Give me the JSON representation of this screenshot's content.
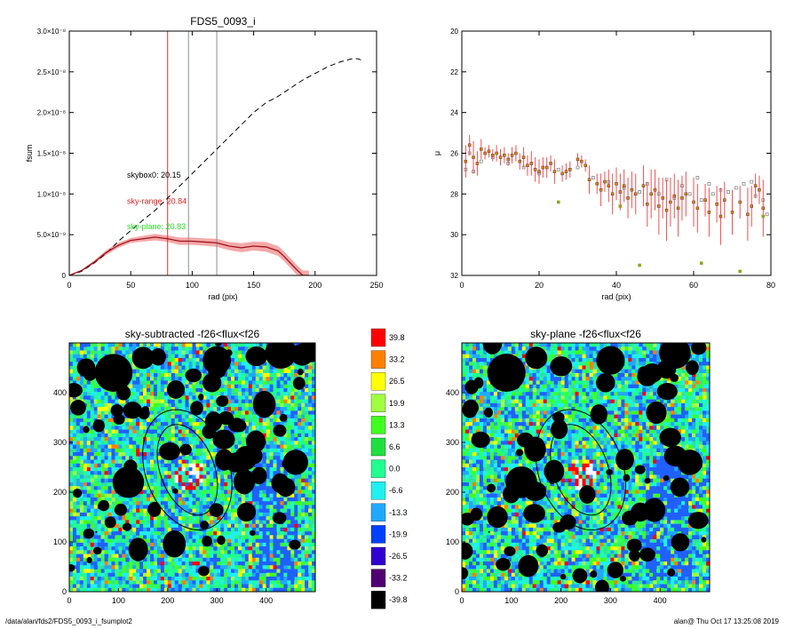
{
  "footer": {
    "path": "/data/alan/fds2/FDS5_0093_i_fsumplot2",
    "stamp": "alan@  Thu Oct 17 13:25:08 2019"
  },
  "colors": {
    "curve_main": "#a0141e",
    "error_band": "#f08c8c",
    "sky_range": "#e02020",
    "sky_plane": "#22dd22",
    "vline_red": "#e03030",
    "vline_gray": "#909090",
    "points_orange": "#ff7700",
    "points_green": "#33cc33",
    "points_gray": "#888888"
  },
  "chart_data": [
    {
      "type": "line",
      "title": "FDS5_0093_i",
      "xlabel": "rad (pix)",
      "ylabel": "fsum",
      "xlim": [
        0,
        250
      ],
      "ylim": [
        0,
        3e-08
      ],
      "xticks": [
        "0",
        "50",
        "100",
        "150",
        "200",
        "250"
      ],
      "xtick_values": [
        0,
        50,
        100,
        150,
        200,
        250
      ],
      "yticks": [
        "0",
        "5.0×10⁻⁹",
        "1.0×10⁻⁸",
        "1.5×10⁻⁸",
        "2.0×10⁻⁸",
        "2.5×10⁻⁸",
        "3.0×10⁻⁸"
      ],
      "ytick_values": [
        0,
        5e-09,
        1e-08,
        1.5e-08,
        2e-08,
        2.5e-08,
        3e-08
      ],
      "vlines": [
        {
          "x": 80,
          "color": "red"
        },
        {
          "x": 97,
          "color": "gray"
        },
        {
          "x": 120,
          "color": "gray"
        }
      ],
      "annotations": [
        {
          "text": "skybox0: 20.15",
          "color": "black",
          "x": 47,
          "y": 1.2e-08
        },
        {
          "text": "sky-range: 20.84",
          "color": "red",
          "x": 47,
          "y": 8.8e-09
        },
        {
          "text": "sky-plane: 20.83",
          "color": "green",
          "x": 47,
          "y": 5.7e-09
        }
      ],
      "series": [
        {
          "style": "dashed",
          "x": [
            0,
            10,
            20,
            30,
            40,
            50,
            60,
            70,
            80,
            90,
            100,
            110,
            120,
            130,
            140,
            150,
            160,
            170,
            180,
            190,
            200,
            210,
            220,
            230,
            235,
            240
          ],
          "values": [
            0,
            5e-10,
            1.5e-09,
            2.7e-09,
            4.2e-09,
            5.5e-09,
            6.8e-09,
            8e-09,
            9.5e-09,
            1.1e-08,
            1.25e-08,
            1.4e-08,
            1.55e-08,
            1.7e-08,
            1.85e-08,
            2e-08,
            2.12e-08,
            2.2e-08,
            2.3e-08,
            2.4e-08,
            2.48e-08,
            2.56e-08,
            2.62e-08,
            2.66e-08,
            2.66e-08,
            2.63e-08
          ]
        },
        {
          "style": "solid",
          "x": [
            0,
            10,
            20,
            30,
            40,
            50,
            60,
            70,
            80,
            90,
            100,
            110,
            120,
            130,
            140,
            150,
            160,
            170,
            175,
            180,
            185,
            190,
            195
          ],
          "values": [
            0,
            6e-10,
            1.6e-09,
            2.8e-09,
            3.7e-09,
            4.3e-09,
            4.5e-09,
            4.7e-09,
            4.5e-09,
            4.2e-09,
            4.2e-09,
            4.1e-09,
            4e-09,
            3.6e-09,
            3.4e-09,
            3.6e-09,
            3.5e-09,
            3e-09,
            2.3e-09,
            1.5e-09,
            7e-10,
            0,
            0
          ],
          "error": [
            0,
            1e-10,
            2e-10,
            3e-10,
            3e-10,
            3e-10,
            3.5e-10,
            4e-10,
            4e-10,
            4.5e-10,
            4.5e-10,
            4.5e-10,
            5e-10,
            5e-10,
            5.5e-10,
            5.5e-10,
            6e-10,
            6e-10,
            6e-10,
            6e-10,
            6e-10,
            6e-10,
            6e-10
          ]
        }
      ]
    },
    {
      "type": "scatter",
      "title": "",
      "xlabel": "rad (pix)",
      "ylabel": "μ",
      "xlim": [
        0,
        80
      ],
      "ylim": [
        32,
        20
      ],
      "xticks": [
        "0",
        "20",
        "40",
        "60",
        "80"
      ],
      "xtick_values": [
        0,
        20,
        40,
        60,
        80
      ],
      "yticks": [
        "20",
        "22",
        "24",
        "26",
        "28",
        "30",
        "32"
      ],
      "ytick_values": [
        20,
        22,
        24,
        26,
        28,
        30,
        32
      ],
      "series": [
        {
          "color": "orange",
          "x": [
            1,
            2,
            3,
            4,
            5,
            6,
            7,
            8,
            9,
            10,
            11,
            12,
            13,
            14,
            15,
            16,
            17,
            18,
            19,
            20,
            21,
            22,
            23,
            24,
            26,
            27,
            28,
            30,
            31,
            32,
            33,
            35,
            36,
            37,
            38,
            39,
            40,
            41,
            42,
            43,
            44,
            45,
            47,
            48,
            49,
            50,
            51,
            52,
            53,
            54,
            55,
            56,
            57,
            58,
            60,
            61,
            63,
            64,
            66,
            67,
            68,
            70,
            72,
            74,
            75,
            76,
            77,
            78
          ],
          "values": [
            26.4,
            25.6,
            26.2,
            26.5,
            25.8,
            26.0,
            25.9,
            26.1,
            26.0,
            26.2,
            26.1,
            26.3,
            26.1,
            26.0,
            26.4,
            26.2,
            26.6,
            26.5,
            26.8,
            26.9,
            26.7,
            26.7,
            26.5,
            26.9,
            27.0,
            26.9,
            26.8,
            26.3,
            26.4,
            26.6,
            27.3,
            27.5,
            27.8,
            27.4,
            27.6,
            28.0,
            27.5,
            27.9,
            27.6,
            28.2,
            27.8,
            28.0,
            27.6,
            28.5,
            28.0,
            27.8,
            28.6,
            28.2,
            28.8,
            28.4,
            28.1,
            28.7,
            28.2,
            28.0,
            28.4,
            28.7,
            28.3,
            28.9,
            28.5,
            29.1,
            28.3,
            28.9,
            28.4,
            29.0,
            28.6,
            27.6,
            27.8,
            28.7
          ],
          "err": [
            0.8,
            0.5,
            0.8,
            0.6,
            0.5,
            0.3,
            0.3,
            0.3,
            0.4,
            0.4,
            0.4,
            0.3,
            0.4,
            0.4,
            0.4,
            0.5,
            0.5,
            0.6,
            0.6,
            0.6,
            0.5,
            0.5,
            0.4,
            0.6,
            0.4,
            0.4,
            0.4,
            0.3,
            0.3,
            0.3,
            0.7,
            0.5,
            0.8,
            0.5,
            0.8,
            1.0,
            0.8,
            0.9,
            0.8,
            1.0,
            0.9,
            1.0,
            1.0,
            1.1,
            1.2,
            1.0,
            1.4,
            1.0,
            1.5,
            1.2,
            1.1,
            1.4,
            1.1,
            1.1,
            1.2,
            1.2,
            0.8,
            1.2,
            0.9,
            1.4,
            0.9,
            1.1,
            0.8,
            1.3,
            1.0,
            0.6,
            0.7,
            1.4
          ]
        },
        {
          "color": "green",
          "x": [
            25,
            41,
            46,
            62,
            72,
            78
          ],
          "values": [
            28.4,
            28.6,
            31.5,
            31.4,
            31.8,
            29.1
          ]
        },
        {
          "color": "gray",
          "x": [
            1,
            2,
            3,
            5,
            8,
            12,
            16,
            20,
            25,
            30,
            34,
            38,
            42,
            46,
            48,
            51,
            53,
            55,
            57,
            59,
            61,
            62,
            64,
            65,
            67,
            69,
            71,
            73,
            75,
            76,
            78,
            79
          ],
          "values": [
            26.8,
            26.0,
            26.9,
            26.4,
            26.2,
            26.5,
            26.7,
            27.0,
            26.8,
            26.7,
            27.2,
            27.4,
            27.7,
            27.9,
            27.5,
            28.0,
            27.3,
            28.2,
            27.6,
            28.0,
            27.2,
            28.3,
            27.5,
            28.0,
            27.8,
            27.9,
            27.7,
            27.5,
            27.4,
            28.1,
            28.3,
            29.0
          ]
        }
      ]
    },
    {
      "type": "heatmap",
      "title": "sky-subtracted -f26<flux<f26",
      "xlim": [
        0,
        500
      ],
      "ylim": [
        0,
        500
      ],
      "xticks": [
        "0",
        "100",
        "200",
        "300",
        "400"
      ],
      "xtick_values": [
        0,
        100,
        200,
        300,
        400
      ],
      "yticks": [
        "0",
        "100",
        "200",
        "300",
        "400"
      ],
      "ytick_values": [
        0,
        100,
        200,
        300,
        400
      ],
      "ellipses": [
        {
          "cx": 240,
          "cy": 245,
          "rx": 55,
          "ry": 95,
          "angle": 20
        },
        {
          "cx": 240,
          "cy": 245,
          "rx": 85,
          "ry": 125,
          "angle": 20
        }
      ]
    },
    {
      "type": "heatmap",
      "title": "sky-plane -f26<flux<f26",
      "xlim": [
        0,
        500
      ],
      "ylim": [
        0,
        500
      ],
      "xticks": [
        "0",
        "100",
        "200",
        "300",
        "400"
      ],
      "xtick_values": [
        0,
        100,
        200,
        300,
        400
      ],
      "yticks": [
        "0",
        "100",
        "200",
        "300",
        "400"
      ],
      "ytick_values": [
        0,
        100,
        200,
        300,
        400
      ],
      "ellipses": [
        {
          "cx": 240,
          "cy": 245,
          "rx": 55,
          "ry": 95,
          "angle": 20
        },
        {
          "cx": 240,
          "cy": 245,
          "rx": 85,
          "ry": 125,
          "angle": 20
        }
      ]
    },
    {
      "type": "colorbar",
      "labels": [
        "39.8",
        "33.2",
        "26.5",
        "19.9",
        "13.3",
        "6.6",
        "0.0",
        "-6.6",
        "-13.3",
        "-19.9",
        "-26.5",
        "-33.2",
        "-39.8"
      ],
      "colors": [
        "#ff0000",
        "#ff8000",
        "#ffff00",
        "#a0ff40",
        "#40ff20",
        "#20e040",
        "#20ff90",
        "#20f0f0",
        "#20a8ff",
        "#0040ff",
        "#3000d0",
        "#500070",
        "#000000"
      ]
    }
  ]
}
